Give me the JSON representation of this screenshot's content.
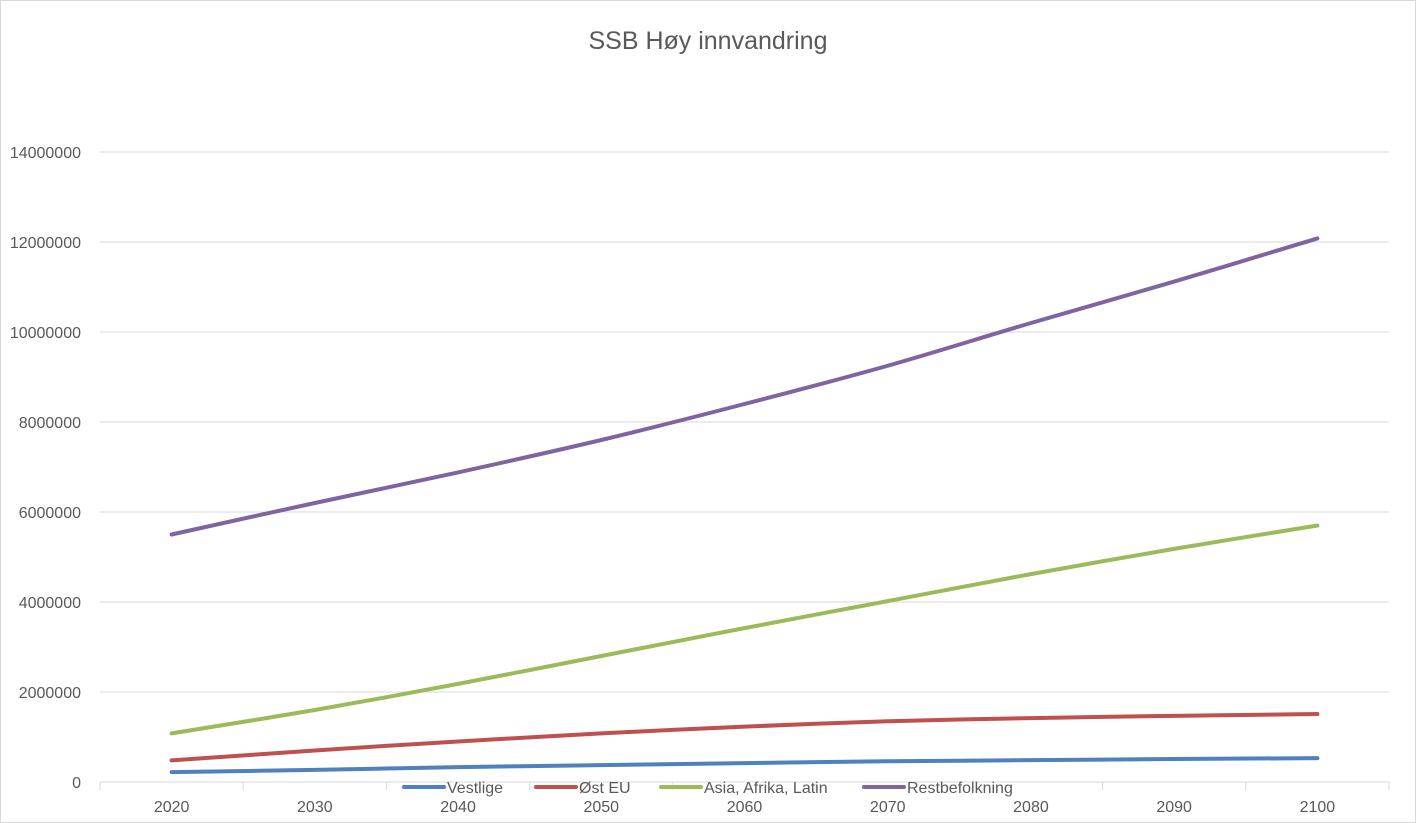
{
  "chart_data": {
    "type": "line",
    "title": "SSB Høy innvandring",
    "xlabel": "",
    "ylabel": "",
    "x": [
      "2020",
      "2030",
      "2040",
      "2050",
      "2060",
      "2070",
      "2080",
      "2090",
      "2100"
    ],
    "ylim": [
      0,
      14000000
    ],
    "yticks": [
      "0",
      "2000000",
      "4000000",
      "6000000",
      "8000000",
      "10000000",
      "12000000",
      "14000000"
    ],
    "grid": true,
    "legend_position": "bottom",
    "series": [
      {
        "name": "Vestlige",
        "color": "#4f81bd",
        "values": [
          220000,
          270000,
          330000,
          375000,
          420000,
          460000,
          485000,
          510000,
          530000
        ]
      },
      {
        "name": "Øst EU",
        "color": "#c0504d",
        "values": [
          480000,
          700000,
          900000,
          1080000,
          1230000,
          1350000,
          1420000,
          1470000,
          1510000
        ]
      },
      {
        "name": "Asia, Afrika, Latin",
        "color": "#9bbb59",
        "values": [
          1080000,
          1600000,
          2180000,
          2800000,
          3420000,
          4020000,
          4620000,
          5180000,
          5700000
        ]
      },
      {
        "name": "Restbefolkning",
        "color": "#8064a2",
        "values": [
          5500000,
          6200000,
          6880000,
          7600000,
          8400000,
          9250000,
          10200000,
          11120000,
          12080000
        ]
      }
    ]
  }
}
